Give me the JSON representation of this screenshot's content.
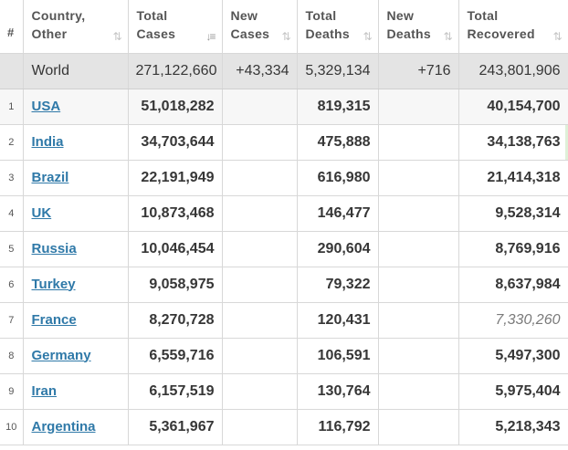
{
  "headers": {
    "rank": "#",
    "country": [
      "Country,",
      "Other"
    ],
    "total_cases": [
      "Total",
      "Cases"
    ],
    "new_cases": [
      "New",
      "Cases"
    ],
    "total_deaths": [
      "Total",
      "Deaths"
    ],
    "new_deaths": [
      "New",
      "Deaths"
    ],
    "total_recovered": [
      "Total",
      "Recovered"
    ]
  },
  "sort_icons": {
    "country": "sort-updown-icon",
    "total_cases": "sort-descending-icon",
    "new_cases": "sort-updown-icon",
    "total_deaths": "sort-updown-icon",
    "new_deaths": "sort-updown-icon",
    "total_recovered": "sort-updown-icon"
  },
  "world": {
    "country": "World",
    "total_cases": "271,122,660",
    "new_cases": "+43,334",
    "total_deaths": "5,329,134",
    "new_deaths": "+716",
    "total_recovered": "243,801,906"
  },
  "rows": [
    {
      "rank": "1",
      "country": "USA",
      "total_cases": "51,018,282",
      "new_cases": "",
      "total_deaths": "819,315",
      "new_deaths": "",
      "total_recovered": "40,154,700"
    },
    {
      "rank": "2",
      "country": "India",
      "total_cases": "34,703,644",
      "new_cases": "",
      "total_deaths": "475,888",
      "new_deaths": "",
      "total_recovered": "34,138,763"
    },
    {
      "rank": "3",
      "country": "Brazil",
      "total_cases": "22,191,949",
      "new_cases": "",
      "total_deaths": "616,980",
      "new_deaths": "",
      "total_recovered": "21,414,318"
    },
    {
      "rank": "4",
      "country": "UK",
      "total_cases": "10,873,468",
      "new_cases": "",
      "total_deaths": "146,477",
      "new_deaths": "",
      "total_recovered": "9,528,314"
    },
    {
      "rank": "5",
      "country": "Russia",
      "total_cases": "10,046,454",
      "new_cases": "",
      "total_deaths": "290,604",
      "new_deaths": "",
      "total_recovered": "8,769,916"
    },
    {
      "rank": "6",
      "country": "Turkey",
      "total_cases": "9,058,975",
      "new_cases": "",
      "total_deaths": "79,322",
      "new_deaths": "",
      "total_recovered": "8,637,984"
    },
    {
      "rank": "7",
      "country": "France",
      "total_cases": "8,270,728",
      "new_cases": "",
      "total_deaths": "120,431",
      "new_deaths": "",
      "total_recovered": "7,330,260"
    },
    {
      "rank": "8",
      "country": "Germany",
      "total_cases": "6,559,716",
      "new_cases": "",
      "total_deaths": "106,591",
      "new_deaths": "",
      "total_recovered": "5,497,300"
    },
    {
      "rank": "9",
      "country": "Iran",
      "total_cases": "6,157,519",
      "new_cases": "",
      "total_deaths": "130,764",
      "new_deaths": "",
      "total_recovered": "5,975,404"
    },
    {
      "rank": "10",
      "country": "Argentina",
      "total_cases": "5,361,967",
      "new_cases": "",
      "total_deaths": "116,792",
      "new_deaths": "",
      "total_recovered": "5,218,343"
    }
  ],
  "colors": {
    "link": "#2f79a8",
    "world_row_bg": "#e4e4e4",
    "estimated_value": "#7a7a7a",
    "recovered_marker": "#dff0d8"
  }
}
